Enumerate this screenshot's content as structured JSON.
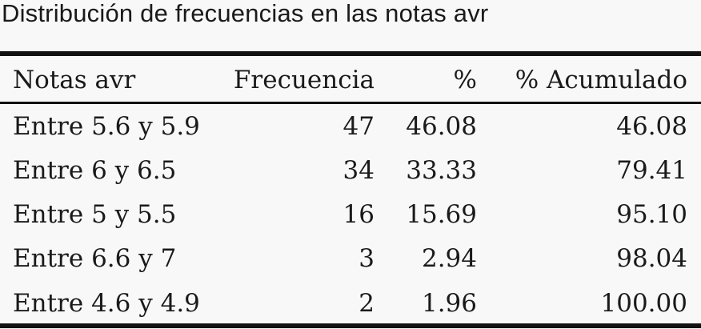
{
  "caption": "Distribución de frecuencias en las notas avr",
  "table": {
    "headers": [
      "Notas avr",
      "Frecuencia",
      "%",
      "% Acumulado"
    ],
    "rows": [
      [
        "Entre 5.6 y 5.9",
        "47",
        "46.08",
        "46.08"
      ],
      [
        "Entre 6 y 6.5",
        "34",
        "33.33",
        "79.41"
      ],
      [
        "Entre 5 y 5.5",
        "16",
        "15.69",
        "95.10"
      ],
      [
        "Entre 6.6 y 7",
        "3",
        "2.94",
        "98.04"
      ],
      [
        "Entre 4.6 y 4.9",
        "2",
        "1.96",
        "100.00"
      ]
    ]
  }
}
